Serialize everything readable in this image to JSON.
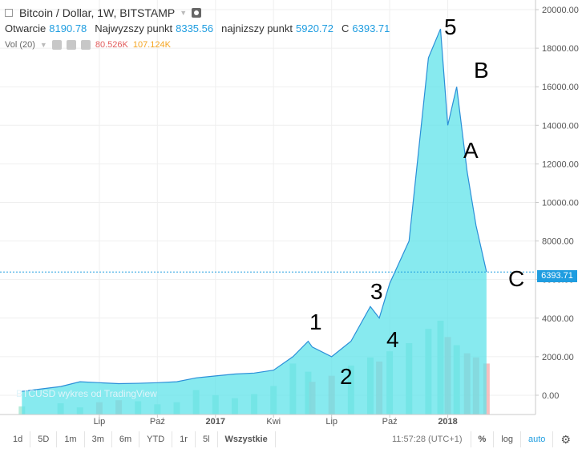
{
  "legend": {
    "symbol": "Bitcoin / Dollar, 1W, BITSTAMP",
    "open_label": "Otwarcie",
    "open_value": "8190.78",
    "high_label": "Najwyzszy punkt",
    "high_value": "8335.56",
    "low_label": "najnizszy punkt",
    "low_value": "5920.72",
    "close_label": "C",
    "close_value": "6393.71",
    "vol_label": "Vol (20)",
    "vol_value_1": "80.526K",
    "vol_value_2": "107.124K"
  },
  "watermark": "BTCUSD wykres od TradingView",
  "price_tag": "6393.71",
  "wave_labels": [
    "1",
    "2",
    "3",
    "4",
    "5",
    "A",
    "B",
    "C"
  ],
  "bottombar": {
    "ranges": [
      "1d",
      "5D",
      "1m",
      "3m",
      "6m",
      "YTD",
      "1r",
      "5l",
      "Wszystkie"
    ],
    "time": "11:57:28 (UTC+1)",
    "percent": "%",
    "log": "log",
    "auto": "auto",
    "settings_icon": "gear-icon"
  },
  "colors": {
    "area_fill": "#5fe3ea",
    "area_line": "#2b8fd8",
    "volume_up": "#a8e8d4",
    "volume_down": "#f4b4b4",
    "price_line": "#1f9de0"
  },
  "chart_data": {
    "type": "area",
    "title": "Bitcoin / Dollar, 1W, BITSTAMP",
    "x_ticks": [
      "Lip",
      "Paź",
      "2017",
      "Kwi",
      "Lip",
      "Paź",
      "2018"
    ],
    "y_ticks": [
      "0.00",
      "2000.00",
      "4000.00",
      "6000.00",
      "8000.00",
      "10000.00",
      "12000.00",
      "14000.00",
      "16000.00",
      "18000.00",
      "20000.00"
    ],
    "ylim": [
      -1000,
      20500
    ],
    "grid": true,
    "current_price": 6393.71,
    "series": [
      {
        "type": "area",
        "x": [
          "2016-03",
          "2016-05",
          "2016-06",
          "2016-07",
          "2016-08",
          "2016-09",
          "2016-10",
          "2016-11",
          "2016-12",
          "2017-01",
          "2017-02",
          "2017-03",
          "2017-04",
          "2017-05",
          "2017-05-25",
          "2017-06",
          "2017-07",
          "2017-08",
          "2017-09",
          "2017-09-15",
          "2017-10",
          "2017-11",
          "2017-12",
          "2017-12-20",
          "2018-01",
          "2018-01-15",
          "2018-02",
          "2018-02-15",
          "2018-03"
        ],
        "values": [
          200,
          450,
          700,
          650,
          600,
          620,
          650,
          700,
          900,
          1000,
          1100,
          1150,
          1300,
          2000,
          2800,
          2500,
          2000,
          2800,
          4600,
          4000,
          5800,
          8000,
          17500,
          19000,
          14000,
          16000,
          11600,
          8800,
          6400
        ]
      },
      {
        "name": "Vol (20)",
        "type": "bar",
        "values": [
          40,
          55,
          35,
          60,
          70,
          65,
          50,
          60,
          120,
          95,
          80,
          100,
          140,
          250,
          210,
          160,
          190,
          240,
          280,
          260,
          310,
          350,
          420,
          460,
          380,
          340,
          300,
          280,
          250
        ]
      }
    ]
  }
}
